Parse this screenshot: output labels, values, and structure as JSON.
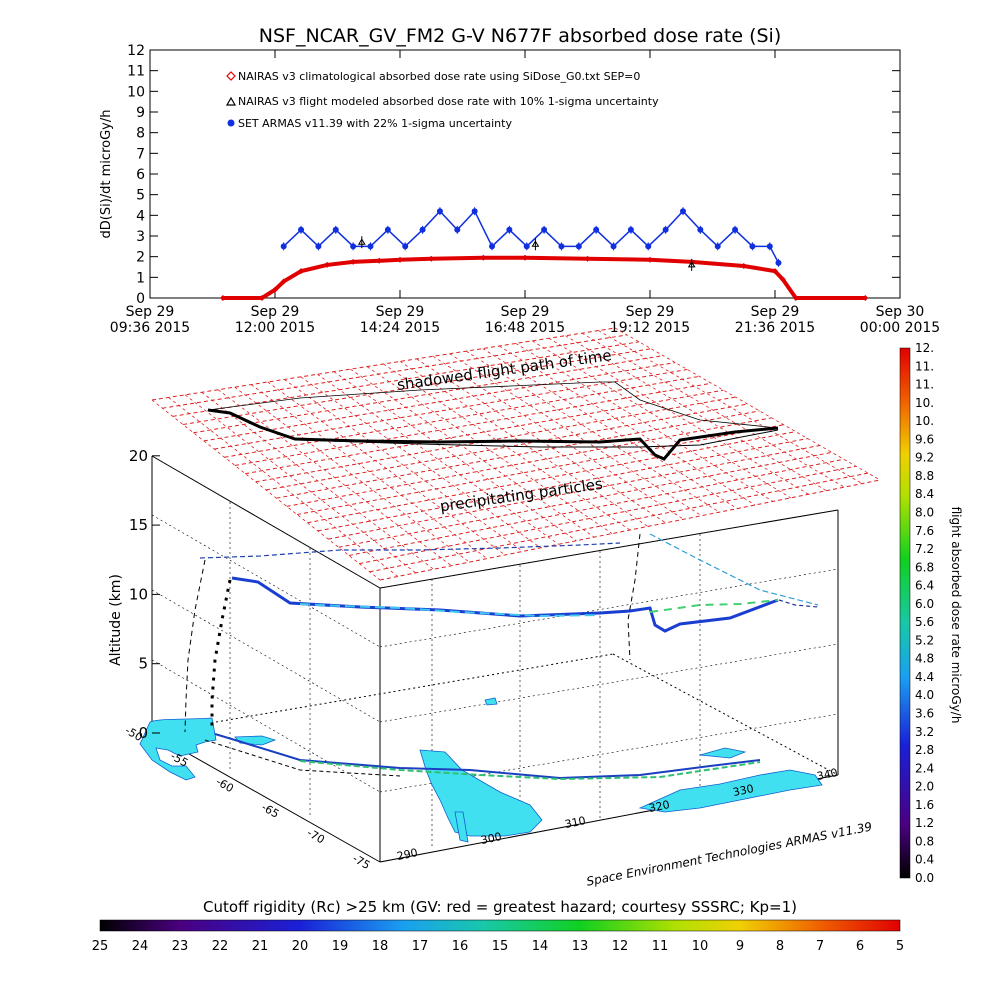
{
  "title": "NSF_NCAR_GV_FM2 G-V    N677F  absorbed dose rate (Si)",
  "chart_data": [
    {
      "type": "line",
      "ylabel": "dD(Si)/dt microGy/h",
      "ylim": [
        0,
        12
      ],
      "yticks": [
        "0",
        "1",
        "2",
        "3",
        "4",
        "5",
        "6",
        "7",
        "8",
        "9",
        "10",
        "11",
        "12"
      ],
      "x_range": [
        "2015-09-29T09:36",
        "2015-09-30T00:00"
      ],
      "xticks": [
        {
          "line1": "Sep 29",
          "line2": "09:36 2015"
        },
        {
          "line1": "Sep 29",
          "line2": "12:00 2015"
        },
        {
          "line1": "Sep 29",
          "line2": "14:24 2015"
        },
        {
          "line1": "Sep 29",
          "line2": "16:48 2015"
        },
        {
          "line1": "Sep 29",
          "line2": "19:12 2015"
        },
        {
          "line1": "Sep 29",
          "line2": "21:36 2015"
        },
        {
          "line1": "Sep 30",
          "line2": "00:00 2015"
        }
      ],
      "legend_placement": "top-left",
      "legend": [
        {
          "marker": "diamond",
          "color": "#e00000",
          "label": "NAIRAS v3 climatological absorbed dose rate using SiDose_G0.txt SEP=0"
        },
        {
          "marker": "triangle",
          "color": "#000000",
          "label": "NAIRAS v3 flight modeled absorbed dose rate with 10% 1-sigma uncertainty"
        },
        {
          "marker": "dot",
          "color": "#1030e0",
          "label": "SET ARMAS v11.39 with 22% 1-sigma uncertainty"
        }
      ],
      "series": [
        {
          "name": "NAIRAS v3 climatological absorbed dose rate using SiDose_G0.txt SEP=0",
          "color": "#e00000",
          "x": [
            "2015-09-29T11:00",
            "2015-09-29T11:45",
            "2015-09-29T12:00",
            "2015-09-29T12:10",
            "2015-09-29T12:30",
            "2015-09-29T13:00",
            "2015-09-29T13:30",
            "2015-09-29T14:00",
            "2015-09-29T14:24",
            "2015-09-29T15:00",
            "2015-09-29T16:00",
            "2015-09-29T16:48",
            "2015-09-29T18:00",
            "2015-09-29T19:12",
            "2015-09-29T20:00",
            "2015-09-29T21:00",
            "2015-09-29T21:36",
            "2015-09-29T21:45",
            "2015-09-29T22:00",
            "2015-09-29T23:20"
          ],
          "y": [
            0,
            0,
            0.4,
            0.8,
            1.3,
            1.6,
            1.75,
            1.8,
            1.85,
            1.9,
            1.95,
            1.95,
            1.9,
            1.85,
            1.75,
            1.55,
            1.3,
            0.9,
            0,
            0
          ]
        },
        {
          "name": "SET ARMAS v11.39 with 22% 1-sigma uncertainty",
          "color": "#1030e0",
          "x": [
            "2015-09-29T12:10",
            "2015-09-29T12:30",
            "2015-09-29T12:50",
            "2015-09-29T13:10",
            "2015-09-29T13:30",
            "2015-09-29T13:50",
            "2015-09-29T14:10",
            "2015-09-29T14:30",
            "2015-09-29T14:50",
            "2015-09-29T15:10",
            "2015-09-29T15:30",
            "2015-09-29T15:50",
            "2015-09-29T16:10",
            "2015-09-29T16:30",
            "2015-09-29T16:50",
            "2015-09-29T17:10",
            "2015-09-29T17:30",
            "2015-09-29T17:50",
            "2015-09-29T18:10",
            "2015-09-29T18:30",
            "2015-09-29T18:50",
            "2015-09-29T19:10",
            "2015-09-29T19:30",
            "2015-09-29T19:50",
            "2015-09-29T20:10",
            "2015-09-29T20:30",
            "2015-09-29T20:50",
            "2015-09-29T21:10",
            "2015-09-29T21:30",
            "2015-09-29T21:40"
          ],
          "y": [
            2.5,
            3.3,
            2.5,
            3.3,
            2.5,
            2.5,
            3.3,
            2.5,
            3.3,
            4.2,
            3.3,
            4.2,
            2.5,
            3.3,
            2.5,
            3.3,
            2.5,
            2.5,
            3.3,
            2.5,
            3.3,
            2.5,
            3.3,
            4.2,
            3.3,
            2.5,
            3.3,
            2.5,
            2.5,
            1.7
          ]
        },
        {
          "name": "NAIRAS v3 flight modeled absorbed dose rate with 10% 1-sigma uncertainty",
          "color": "#000000",
          "x": [
            "2015-09-29T13:40",
            "2015-09-29T17:00",
            "2015-09-29T20:00"
          ],
          "y": [
            2.7,
            2.6,
            1.6
          ]
        }
      ]
    },
    {
      "type": "scatter",
      "label_top": "shadowed flight path of time",
      "label_mid": "precipitating particles",
      "zlabel": "Altitude (km)",
      "zticks": [
        "0",
        "5",
        "10",
        "15",
        "20"
      ],
      "lat_ticks": [
        "-50",
        "-55",
        "-60",
        "-65",
        "-70",
        "-75"
      ],
      "lon_ticks": [
        "290",
        "300",
        "310",
        "320",
        "330",
        "340"
      ],
      "credit": "Space Environment Technologies ARMAS v11.39"
    }
  ],
  "dose_colorbar": {
    "label": "flight absorbed dose rate microGy/h",
    "ticks": [
      "0.0",
      "0.4",
      "0.8",
      "1.2",
      "1.6",
      "2.0",
      "2.4",
      "2.8",
      "3.2",
      "3.6",
      "4.0",
      "4.4",
      "4.8",
      "5.2",
      "5.6",
      "6.0",
      "6.4",
      "6.8",
      "7.2",
      "7.6",
      "8.0",
      "8.4",
      "8.8",
      "9.2",
      "9.6",
      "10.",
      "10.",
      "11.",
      "11.",
      "12."
    ]
  },
  "rigidity_colorbar": {
    "label": "Cutoff rigidity (Rc) >25 km (GV: red = greatest hazard; courtesy SSSRC; Kp=1)",
    "ticks": [
      "25",
      "24",
      "23",
      "22",
      "21",
      "20",
      "19",
      "18",
      "17",
      "16",
      "15",
      "14",
      "13",
      "12",
      "11",
      "10",
      "9",
      "8",
      "7",
      "6",
      "5"
    ]
  },
  "colors": {
    "nairas_climatological": "#e00000",
    "armas": "#1030e0",
    "grid_red": "#dd2020",
    "land_fill": "#40e0f0"
  }
}
